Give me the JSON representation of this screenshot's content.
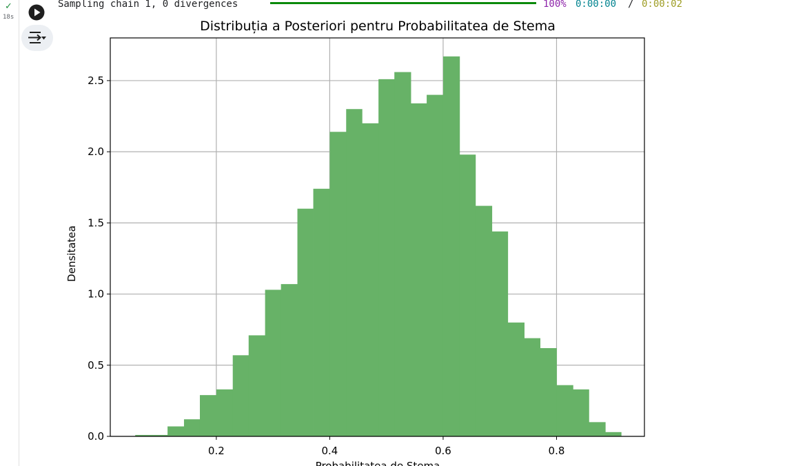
{
  "cell": {
    "elapsed": "18s",
    "status_icon": "check-icon",
    "run_icon": "play-icon",
    "output_icon": "output-toggle-icon"
  },
  "progress": {
    "text": "Sampling chain 1, 0 divergences",
    "percent": "100%",
    "percent_value": 100,
    "elapsed": "0:00:00",
    "separator": "/",
    "total": "0:00:02",
    "bar_color": "#0a8a0a"
  },
  "chart_data": {
    "type": "bar",
    "title": "Distribuția a Posteriori pentru Probabilitatea de Stema",
    "xlabel": "Probabilitatea de Stema",
    "ylabel": "Densitatea",
    "xlim": [
      0.013,
      0.955
    ],
    "ylim": [
      0,
      2.8
    ],
    "xticks": [
      0.2,
      0.4,
      0.6,
      0.8
    ],
    "xtick_labels": [
      "0.2",
      "0.4",
      "0.6",
      "0.8"
    ],
    "yticks": [
      0.0,
      0.5,
      1.0,
      1.5,
      2.0,
      2.5
    ],
    "ytick_labels": [
      "0.0",
      "0.5",
      "1.0",
      "1.5",
      "2.0",
      "2.5"
    ],
    "grid": true,
    "color": "#67b267",
    "bin_edges": [
      0.057,
      0.086,
      0.114,
      0.143,
      0.171,
      0.2,
      0.229,
      0.257,
      0.286,
      0.314,
      0.343,
      0.371,
      0.4,
      0.429,
      0.457,
      0.486,
      0.514,
      0.543,
      0.571,
      0.6,
      0.629,
      0.657,
      0.686,
      0.714,
      0.743,
      0.771,
      0.8,
      0.829,
      0.857,
      0.886,
      0.914
    ],
    "values": [
      0.01,
      0.01,
      0.07,
      0.12,
      0.29,
      0.33,
      0.57,
      0.71,
      1.03,
      1.07,
      1.6,
      1.74,
      2.14,
      2.3,
      2.2,
      2.51,
      2.56,
      2.34,
      2.4,
      2.67,
      1.98,
      1.62,
      1.44,
      0.8,
      0.69,
      0.62,
      0.36,
      0.33,
      0.1,
      0.03
    ]
  }
}
